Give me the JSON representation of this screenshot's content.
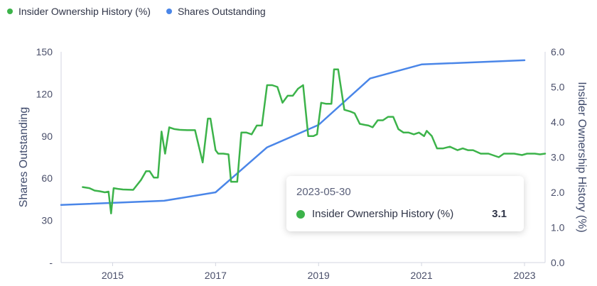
{
  "legend": {
    "items": [
      {
        "label": "Insider Ownership History (%)",
        "color": "#3cb34a"
      },
      {
        "label": "Shares Outstanding",
        "color": "#4a86e8"
      }
    ]
  },
  "tooltip": {
    "date": "2023-05-30",
    "series_label": "Insider Ownership History (%)",
    "value": "3.1",
    "color": "#3cb34a"
  },
  "chart_data": {
    "type": "line",
    "xlim": [
      2014.0,
      2023.4
    ],
    "x_ticks": [
      2015,
      2017,
      2019,
      2021,
      2023
    ],
    "x_tick_labels": [
      "2015",
      "2017",
      "2019",
      "2021",
      "2023"
    ],
    "y_left": {
      "label": "Shares Outstanding",
      "ylim": [
        0,
        150
      ],
      "ticks": [
        0,
        30,
        60,
        90,
        120,
        150
      ],
      "tick_labels": [
        "-",
        "30",
        "60",
        "90",
        "120",
        "150"
      ]
    },
    "y_right": {
      "label": "Insider Ownership History (%)",
      "ylim": [
        0,
        6
      ],
      "ticks": [
        0,
        1,
        2,
        3,
        4,
        5,
        6
      ],
      "tick_labels": [
        "0.0",
        "1.0",
        "2.0",
        "3.0",
        "4.0",
        "5.0",
        "6.0"
      ]
    },
    "series": [
      {
        "name": "Shares Outstanding",
        "axis": "left",
        "color": "#4a86e8",
        "x": [
          2014.0,
          2016.0,
          2017.0,
          2018.0,
          2019.0,
          2020.0,
          2021.0,
          2023.0
        ],
        "y": [
          41,
          44,
          50,
          82,
          98,
          131,
          141,
          144
        ]
      },
      {
        "name": "Insider Ownership History (%)",
        "axis": "right",
        "color": "#3cb34a",
        "x": [
          2014.42,
          2014.55,
          2014.65,
          2014.75,
          2014.85,
          2014.92,
          2014.97,
          2015.02,
          2015.1,
          2015.2,
          2015.4,
          2015.55,
          2015.65,
          2015.72,
          2015.8,
          2015.88,
          2015.95,
          2016.02,
          2016.1,
          2016.2,
          2016.3,
          2016.45,
          2016.6,
          2016.75,
          2016.85,
          2016.9,
          2017.0,
          2017.05,
          2017.15,
          2017.25,
          2017.3,
          2017.42,
          2017.5,
          2017.6,
          2017.7,
          2017.8,
          2017.9,
          2018.0,
          2018.1,
          2018.2,
          2018.3,
          2018.4,
          2018.5,
          2018.6,
          2018.7,
          2018.8,
          2018.9,
          2018.97,
          2019.05,
          2019.15,
          2019.25,
          2019.3,
          2019.38,
          2019.5,
          2019.62,
          2019.7,
          2019.8,
          2019.9,
          2019.97,
          2020.05,
          2020.15,
          2020.25,
          2020.35,
          2020.45,
          2020.55,
          2020.65,
          2020.75,
          2020.85,
          2020.95,
          2021.05,
          2021.1,
          2021.2,
          2021.3,
          2021.42,
          2021.55,
          2021.7,
          2021.8,
          2021.9,
          2022.0,
          2022.15,
          2022.2,
          2022.3,
          2022.5,
          2022.6,
          2022.7,
          2022.8,
          2022.95,
          2023.05,
          2023.2,
          2023.3,
          2023.4
        ],
        "y": [
          2.15,
          2.12,
          2.05,
          2.03,
          2.0,
          2.02,
          1.4,
          2.12,
          2.1,
          2.08,
          2.07,
          2.35,
          2.6,
          2.6,
          2.42,
          2.42,
          3.73,
          3.1,
          3.85,
          3.8,
          3.78,
          3.77,
          3.77,
          2.85,
          4.1,
          4.1,
          3.2,
          3.1,
          3.1,
          3.08,
          2.3,
          2.3,
          3.7,
          3.7,
          3.65,
          3.9,
          3.9,
          5.05,
          5.05,
          5.0,
          4.55,
          4.75,
          4.75,
          4.95,
          5.05,
          3.6,
          3.6,
          3.65,
          4.55,
          4.52,
          4.52,
          5.5,
          5.5,
          4.35,
          4.3,
          4.25,
          3.95,
          3.92,
          3.9,
          3.85,
          4.05,
          4.05,
          4.15,
          4.15,
          3.8,
          3.7,
          3.7,
          3.65,
          3.7,
          3.6,
          3.75,
          3.6,
          3.25,
          3.25,
          3.3,
          3.2,
          3.25,
          3.2,
          3.2,
          3.1,
          3.1,
          3.1,
          3.0,
          3.1,
          3.1,
          3.1,
          3.06,
          3.1,
          3.1,
          3.08,
          3.1
        ]
      }
    ],
    "grid": false,
    "legend_position": "top-left"
  }
}
